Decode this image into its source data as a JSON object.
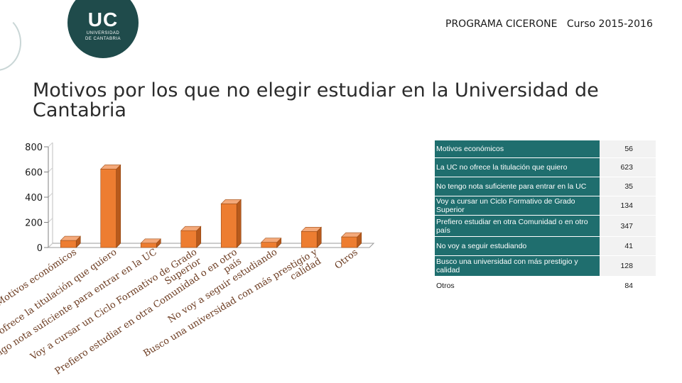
{
  "header": {
    "logo_text": "UC",
    "logo_sub_1": "UNIVERSIDAD",
    "logo_sub_2": "DE CANTABRIA",
    "program_title": "PROGRAMA CICERONE   Curso 2015-2016"
  },
  "title": "Motivos por los que no elegir estudiar en la Universidad de Cantabria",
  "colors": {
    "bar": "#ed7d31",
    "bar_top": "#f4a97a",
    "bar_side": "#b85a1c",
    "label_text": "#6b3a1f",
    "legend_bg": "#1f6e6e",
    "logo_bg": "#1f4b4b"
  },
  "chart_data": {
    "type": "bar",
    "ylim": [
      0,
      800
    ],
    "yticks": [
      0,
      200,
      400,
      600,
      800
    ],
    "categories": [
      "Motivos económicos",
      "La UC no ofrece la titulación que quiero",
      "No tengo nota suficiente para entrar en la UC",
      "Voy a cursar un Ciclo Formativo de Grado Superior",
      "Prefiero estudiar en otra Comunidad o en otro país",
      "No voy a seguir estudiando",
      "Busco una universidad con más prestigio y calidad",
      "Otros"
    ],
    "values": [
      56,
      623,
      35,
      134,
      347,
      41,
      128,
      84
    ],
    "axis_label_lines": [
      [
        "Motivos económicos"
      ],
      [
        "La UC no ofrece la titulación que quiero"
      ],
      [
        "No tengo nota suficiente para entrar en la UC"
      ],
      [
        "Voy a cursar un Ciclo Formativo de Grado",
        "Superior"
      ],
      [
        "Prefiero estudiar en otra Comunidad o en otro",
        "país"
      ],
      [
        "No voy a seguir estudiando"
      ],
      [
        "Busco una universidad con más prestigio y",
        "calidad"
      ],
      [
        "Otros"
      ]
    ]
  },
  "legend": [
    {
      "label": "Motivos económicos",
      "value": "56"
    },
    {
      "label": "La UC no ofrece la titulación que quiero",
      "value": "623"
    },
    {
      "label": "No tengo nota suficiente para entrar en la UC",
      "value": "35"
    },
    {
      "label": "Voy a cursar un Ciclo Formativo de Grado Superior",
      "value": "134"
    },
    {
      "label": "Prefiero estudiar en otra Comunidad o en otro país",
      "value": "347"
    },
    {
      "label": "No voy a seguir estudiando",
      "value": "41"
    },
    {
      "label": "Busco una universidad con más prestigio y calidad",
      "value": "128"
    },
    {
      "label": "Otros",
      "value": "84"
    }
  ]
}
